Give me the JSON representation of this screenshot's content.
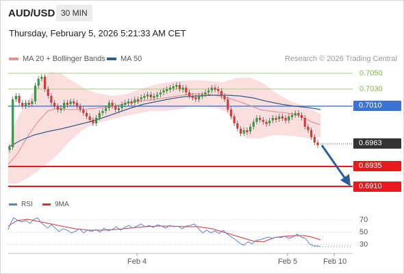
{
  "header": {
    "symbol": "AUD/USD",
    "timeframe": "30 MIN",
    "datetime": "Thursday, February 5, 2026 5:21:33 AM CET"
  },
  "legend": {
    "bollinger": "MA 20 + Bollinger Bands",
    "ma50": "MA 50",
    "credit": "Research © 2026 Trading Central"
  },
  "rsi_legend": {
    "rsi": "RSI",
    "ma": "9MA"
  },
  "colors": {
    "up": "#2e9e3e",
    "down": "#d63a3a",
    "bands": "#f9d6d6",
    "ma50": "#2d5f8b",
    "pivot": "#4a7fd4",
    "support": "#e8191c",
    "resistance_lines": "#a6cc7a",
    "arrow": "#2a5d9b"
  },
  "price_levels": [
    {
      "value": "0.7050",
      "role": "resistance-2"
    },
    {
      "value": "0.7030",
      "role": "resistance-1"
    },
    {
      "value": "0.7010",
      "role": "pivot"
    },
    {
      "value": "0.6963",
      "role": "last-price"
    },
    {
      "value": "0.6935",
      "role": "support-1"
    },
    {
      "value": "0.6910",
      "role": "support-2"
    }
  ],
  "rsi_axis": [
    "70",
    "50",
    "30"
  ],
  "x_axis": [
    "Feb 4",
    "Feb 5",
    "Feb 10"
  ]
}
